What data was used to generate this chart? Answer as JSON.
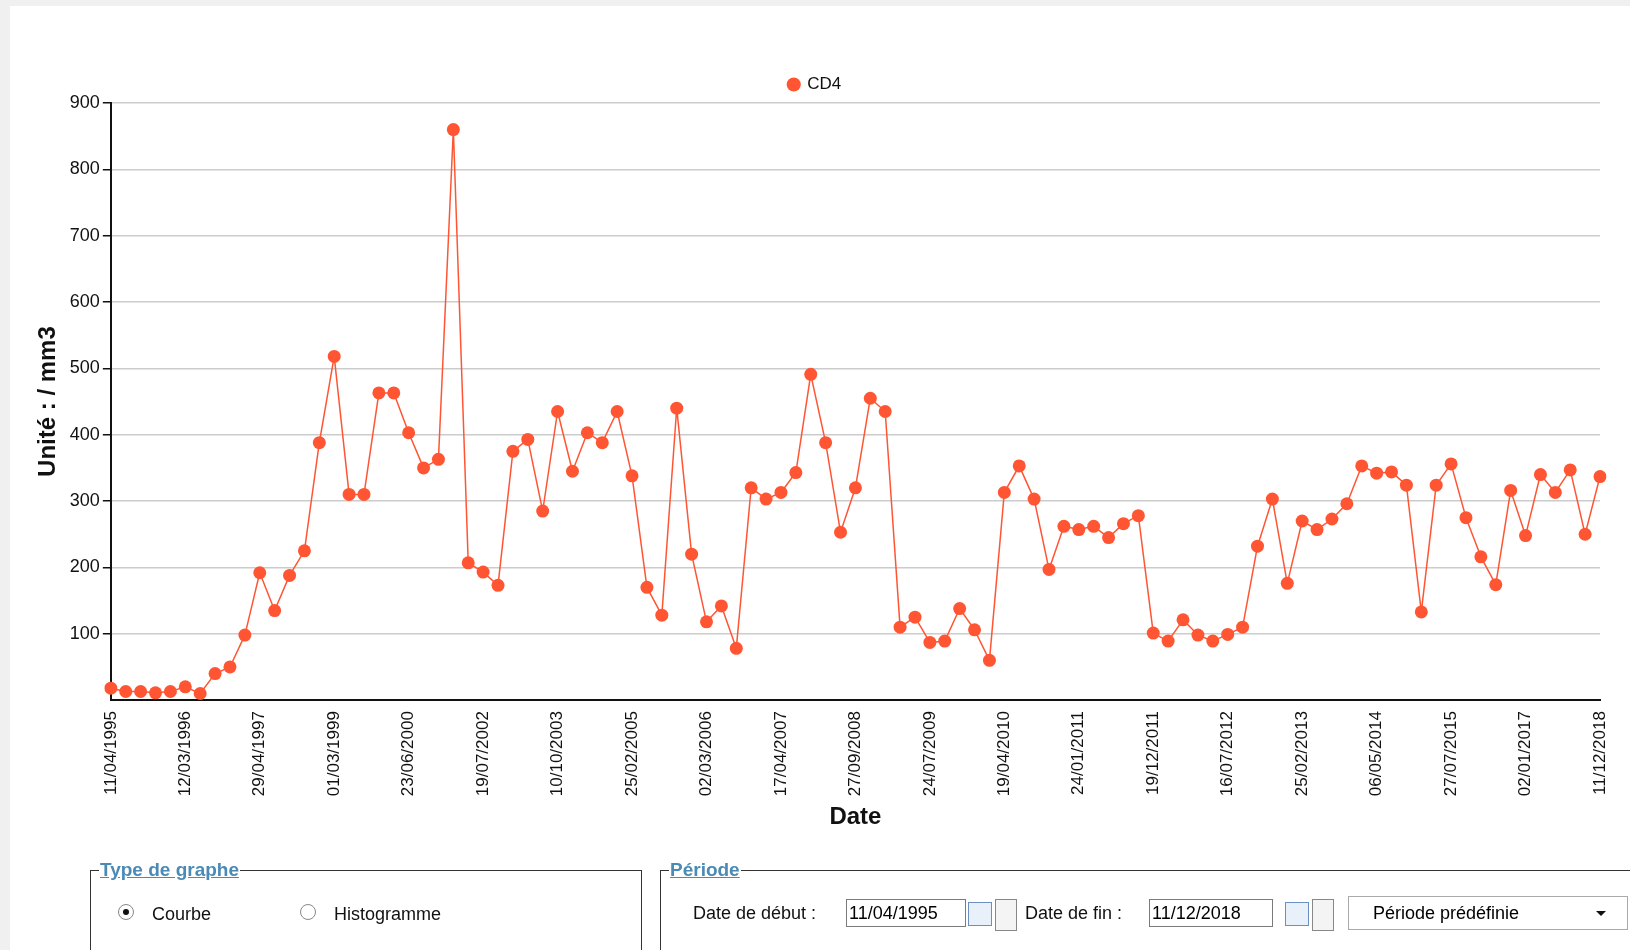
{
  "chart_data": {
    "type": "line",
    "xlabel": "Date",
    "ylabel": "Unité : / mm3",
    "categories": [
      "11/04/1995",
      null,
      null,
      null,
      null,
      "12/03/1996",
      null,
      null,
      null,
      null,
      "29/04/1997",
      null,
      null,
      null,
      null,
      "01/03/1999",
      null,
      null,
      null,
      null,
      "23/06/2000",
      null,
      null,
      null,
      null,
      "19/07/2002",
      null,
      null,
      null,
      null,
      "10/10/2003",
      null,
      null,
      null,
      null,
      "25/02/2005",
      null,
      null,
      null,
      null,
      "02/03/2006",
      null,
      null,
      null,
      null,
      "17/04/2007",
      null,
      null,
      null,
      null,
      "27/09/2008",
      null,
      null,
      null,
      null,
      "24/07/2009",
      null,
      null,
      null,
      null,
      "19/04/2010",
      null,
      null,
      null,
      null,
      "24/01/2011",
      null,
      null,
      null,
      null,
      "19/12/2011",
      null,
      null,
      null,
      null,
      "16/07/2012",
      null,
      null,
      null,
      null,
      "25/02/2013",
      null,
      null,
      null,
      null,
      "06/05/2014",
      null,
      null,
      null,
      null,
      "27/07/2015",
      null,
      null,
      null,
      null,
      "02/01/2017",
      null,
      null,
      null,
      null,
      "11/12/2018"
    ],
    "series": [
      {
        "name": "CD4",
        "color": "#ff5533",
        "values": [
          18,
          13,
          13,
          11,
          13,
          20,
          10,
          40,
          50,
          98,
          192,
          135,
          188,
          225,
          388,
          518,
          310,
          310,
          463,
          463,
          403,
          350,
          363,
          860,
          207,
          193,
          173,
          375,
          393,
          285,
          435,
          345,
          403,
          388,
          435,
          338,
          170,
          128,
          440,
          220,
          118,
          142,
          78,
          320,
          303,
          313,
          343,
          491,
          388,
          253,
          320,
          455,
          435,
          110,
          125,
          87,
          89,
          138,
          106,
          60,
          313,
          353,
          303,
          197,
          262,
          257,
          262,
          245,
          266,
          278,
          101,
          89,
          121,
          98,
          89,
          99,
          110,
          232,
          303,
          176,
          270,
          257,
          273,
          296,
          353,
          342,
          344,
          324,
          133,
          324,
          356,
          275,
          216,
          174,
          316,
          248,
          340,
          313,
          347,
          250,
          337
        ]
      }
    ],
    "ylim": [
      0,
      900
    ],
    "yticks": [
      100,
      200,
      300,
      400,
      500,
      600,
      700,
      800,
      900
    ],
    "grid": "y",
    "legend": "top",
    "marker": "circle",
    "line_style": "solid",
    "annotations": [
      "Type de graphe",
      "Courbe",
      "Histogramme",
      "Période",
      "Date de début :",
      "11/04/1995",
      "Date de fin :",
      "11/12/2018",
      "Période prédéfinie"
    ]
  }
}
